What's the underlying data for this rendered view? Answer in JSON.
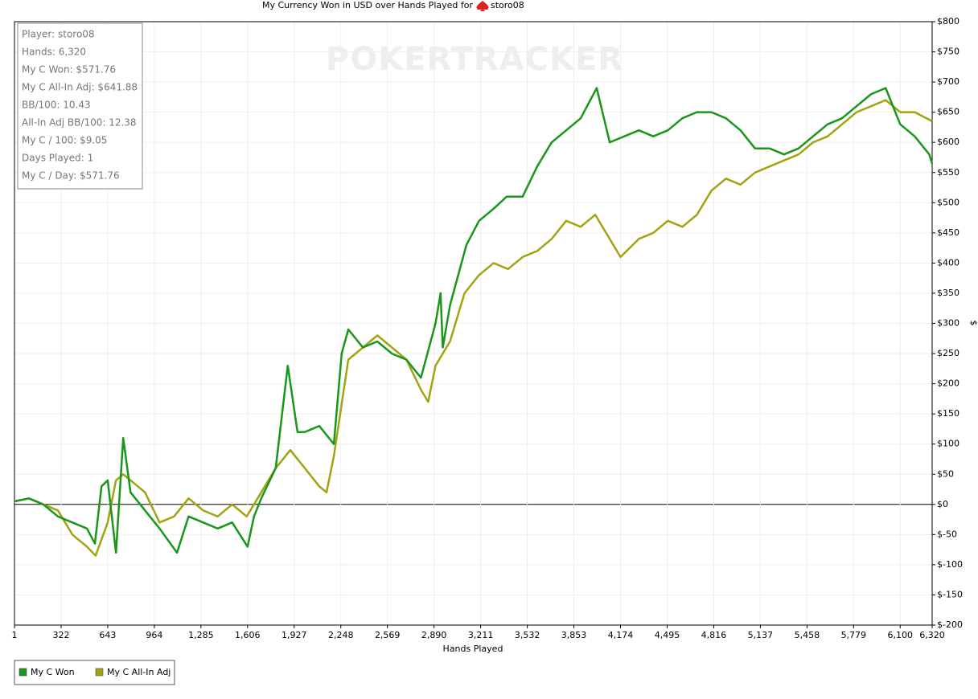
{
  "chart_data": {
    "type": "line",
    "title": "My Currency Won in USD over Hands Played for",
    "title_player": "storo08",
    "watermark": "POKERTRACKER",
    "stats": [
      "Player: storo08",
      "Hands: 6,320",
      "My C Won: $571.76",
      "My C All-In Adj: $641.88",
      "BB/100: 10.43",
      "All-In Adj BB/100: 12.38",
      "My C / 100: $9.05",
      "Days Played: 1",
      "My C / Day: $571.76"
    ],
    "xlabel": "Hands Played",
    "ylabel": "$",
    "xlim": [
      1,
      6320
    ],
    "ylim": [
      -200,
      800
    ],
    "xticks": [
      1,
      322,
      643,
      964,
      {
        "value": 1285,
        "label": "1,285"
      },
      {
        "value": 1606,
        "label": "1,606"
      },
      {
        "value": 1927,
        "label": "1,927"
      },
      {
        "value": 2248,
        "label": "2,248"
      },
      {
        "value": 2569,
        "label": "2,569"
      },
      {
        "value": 2890,
        "label": "2,890"
      },
      {
        "value": 3211,
        "label": "3,211"
      },
      {
        "value": 3532,
        "label": "3,532"
      },
      {
        "value": 3853,
        "label": "3,853"
      },
      {
        "value": 4174,
        "label": "4,174"
      },
      {
        "value": 4495,
        "label": "4,495"
      },
      {
        "value": 4816,
        "label": "4,816"
      },
      {
        "value": 5137,
        "label": "5,137"
      },
      {
        "value": 5458,
        "label": "5,458"
      },
      {
        "value": 5779,
        "label": "5,779"
      },
      {
        "value": 6100,
        "label": "6,100"
      },
      {
        "value": 6320,
        "label": "6,320"
      }
    ],
    "yticks": [
      {
        "value": -200,
        "label": "$-200"
      },
      {
        "value": -150,
        "label": "$-150"
      },
      {
        "value": -100,
        "label": "$-100"
      },
      {
        "value": -50,
        "label": "$-50"
      },
      {
        "value": 0,
        "label": "$0"
      },
      {
        "value": 50,
        "label": "$50"
      },
      {
        "value": 100,
        "label": "$100"
      },
      {
        "value": 150,
        "label": "$150"
      },
      {
        "value": 200,
        "label": "$200"
      },
      {
        "value": 250,
        "label": "$250"
      },
      {
        "value": 300,
        "label": "$300"
      },
      {
        "value": 350,
        "label": "$350"
      },
      {
        "value": 400,
        "label": "$400"
      },
      {
        "value": 450,
        "label": "$450"
      },
      {
        "value": 500,
        "label": "$500"
      },
      {
        "value": 550,
        "label": "$550"
      },
      {
        "value": 600,
        "label": "$600"
      },
      {
        "value": 650,
        "label": "$650"
      },
      {
        "value": 700,
        "label": "$700"
      },
      {
        "value": 750,
        "label": "$750"
      },
      {
        "value": 800,
        "label": "$800"
      }
    ],
    "grid": true,
    "legend": "bottom-left",
    "series": [
      {
        "name": "My C Won",
        "color": "#1a961a",
        "x": [
          1,
          100,
          200,
          300,
          400,
          500,
          555,
          600,
          643,
          700,
          750,
          800,
          900,
          1000,
          1120,
          1200,
          1300,
          1400,
          1500,
          1606,
          1650,
          1700,
          1800,
          1883,
          1950,
          2000,
          2100,
          2200,
          2254,
          2300,
          2400,
          2500,
          2600,
          2700,
          2800,
          2900,
          2935,
          2950,
          3000,
          3113,
          3200,
          3300,
          3390,
          3500,
          3600,
          3700,
          3800,
          3900,
          4010,
          4100,
          4200,
          4300,
          4400,
          4500,
          4600,
          4700,
          4800,
          4900,
          5000,
          5100,
          5200,
          5300,
          5400,
          5500,
          5600,
          5700,
          5800,
          5900,
          6000,
          6100,
          6200,
          6300,
          6320
        ],
        "values": [
          5,
          10,
          0,
          -20,
          -30,
          -40,
          -65,
          30,
          40,
          -80,
          110,
          20,
          -10,
          -40,
          -80,
          -20,
          -30,
          -40,
          -30,
          -70,
          -20,
          10,
          60,
          230,
          120,
          120,
          130,
          100,
          250,
          290,
          260,
          270,
          250,
          240,
          210,
          300,
          350,
          260,
          330,
          430,
          470,
          490,
          510,
          510,
          560,
          600,
          620,
          640,
          690,
          600,
          610,
          620,
          610,
          620,
          640,
          650,
          650,
          640,
          620,
          590,
          590,
          580,
          590,
          610,
          630,
          640,
          660,
          680,
          690,
          630,
          610,
          580,
          565
        ]
      },
      {
        "name": "My C All-In Adj",
        "color": "#a3a312",
        "x": [
          1,
          100,
          200,
          300,
          400,
          500,
          560,
          643,
          700,
          750,
          800,
          900,
          1000,
          1100,
          1200,
          1300,
          1400,
          1500,
          1600,
          1700,
          1800,
          1900,
          2000,
          2100,
          2150,
          2200,
          2300,
          2400,
          2500,
          2600,
          2700,
          2800,
          2850,
          2900,
          3000,
          3100,
          3200,
          3300,
          3400,
          3500,
          3600,
          3700,
          3800,
          3900,
          4000,
          4100,
          4174,
          4300,
          4400,
          4500,
          4600,
          4700,
          4800,
          4900,
          5000,
          5100,
          5200,
          5300,
          5400,
          5500,
          5600,
          5700,
          5800,
          5900,
          6000,
          6100,
          6200,
          6320
        ],
        "values": [
          5,
          10,
          0,
          -10,
          -50,
          -70,
          -85,
          -30,
          40,
          50,
          40,
          20,
          -30,
          -20,
          10,
          -10,
          -20,
          0,
          -20,
          20,
          60,
          90,
          60,
          30,
          20,
          80,
          240,
          260,
          280,
          260,
          240,
          190,
          170,
          230,
          270,
          350,
          380,
          400,
          390,
          410,
          420,
          440,
          470,
          460,
          480,
          440,
          410,
          440,
          450,
          470,
          460,
          480,
          520,
          540,
          530,
          550,
          560,
          570,
          580,
          600,
          610,
          630,
          650,
          660,
          670,
          650,
          650,
          635
        ]
      }
    ]
  }
}
